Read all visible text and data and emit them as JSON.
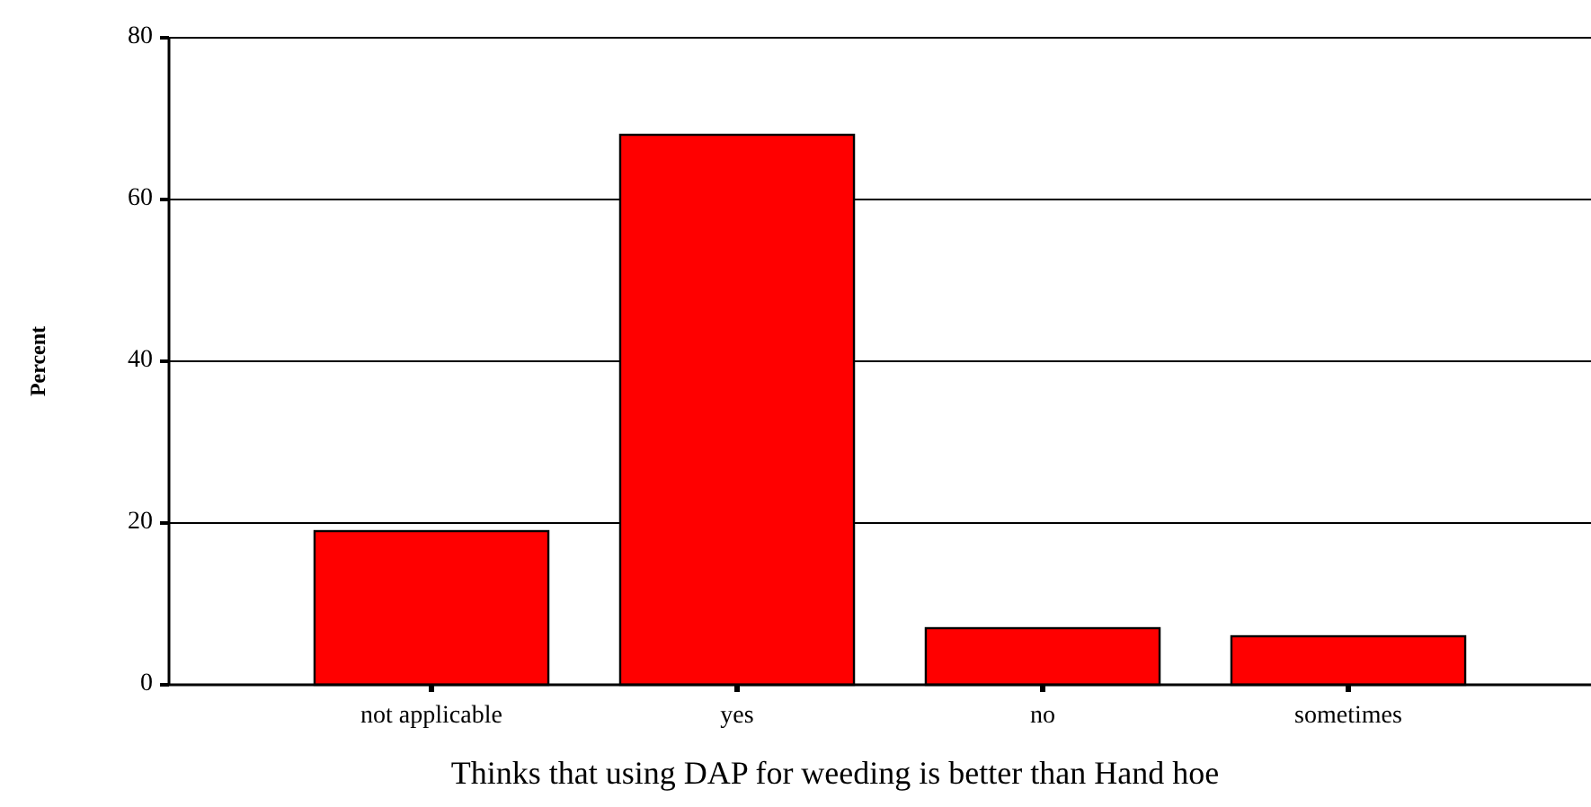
{
  "chart_data": {
    "type": "bar",
    "xlabel": "Thinks that using DAP for weeding is better than Hand hoe",
    "ylabel": "Percent",
    "categories": [
      "not applicable",
      "yes",
      "no",
      "sometimes"
    ],
    "values": [
      19,
      68,
      7,
      6
    ],
    "color": "#ff0000",
    "ylim": [
      0,
      80
    ],
    "yticks": [
      0,
      20,
      40,
      60,
      80
    ],
    "grid": "y"
  }
}
